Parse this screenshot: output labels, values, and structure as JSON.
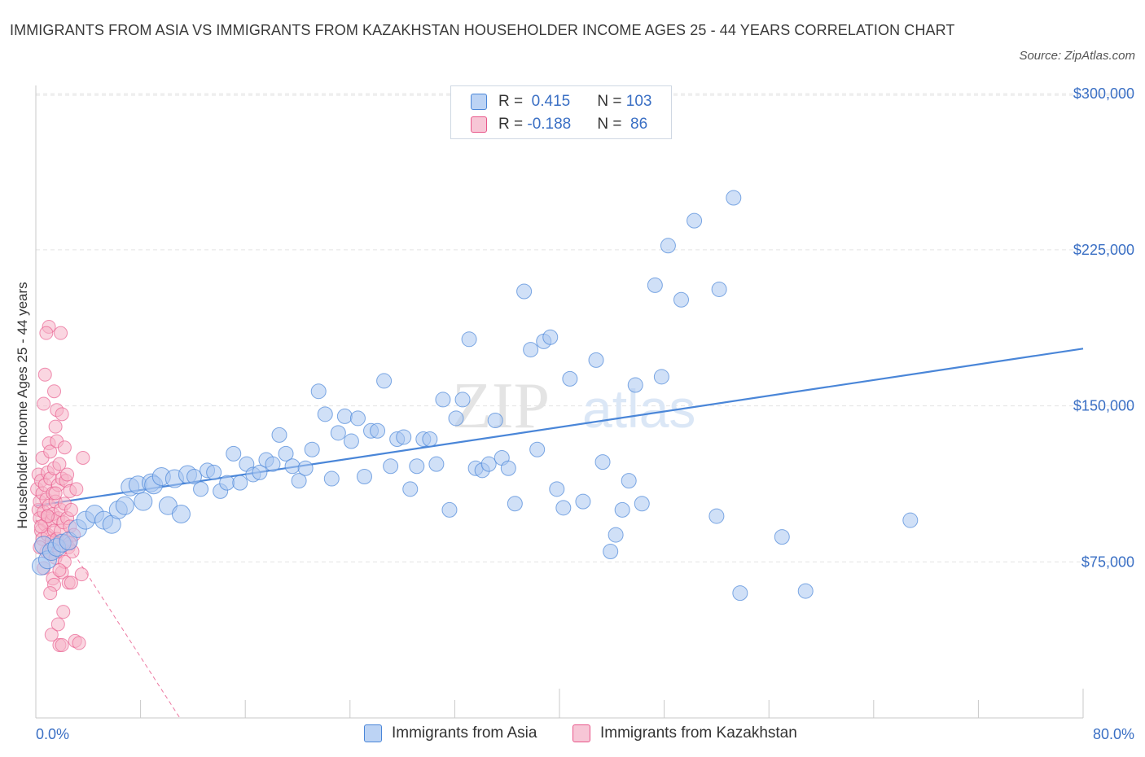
{
  "title": "IMMIGRANTS FROM ASIA VS IMMIGRANTS FROM KAZAKHSTAN HOUSEHOLDER INCOME AGES 25 - 44 YEARS CORRELATION CHART",
  "source": "Source: ZipAtlas.com",
  "watermark": {
    "zip": "ZIP",
    "atlas": "atlas"
  },
  "colors": {
    "asia": "#4a86d8",
    "asia_fill": "#a9c6f0",
    "kaz": "#e8578a",
    "kaz_fill": "#f5b4c9",
    "tick": "#3a6fc4"
  },
  "legend": {
    "rows": [
      {
        "r_label": "R = ",
        "r_value": " 0.415",
        "n_label": "N = ",
        "n_value": "103"
      },
      {
        "r_label": "R = ",
        "r_value": "-0.188",
        "n_label": "N = ",
        "n_value": " 86"
      }
    ]
  },
  "chart_data": {
    "type": "scatter",
    "title": "IMMIGRANTS FROM ASIA VS IMMIGRANTS FROM KAZAKHSTAN HOUSEHOLDER INCOME AGES 25 - 44 YEARS CORRELATION CHART",
    "xlabel": "",
    "ylabel": "Householder Income Ages 25 - 44 years",
    "xlim": [
      0,
      80
    ],
    "ylim": [
      0,
      300000
    ],
    "x_tick_labels": [
      "0.0%",
      "80.0%"
    ],
    "y_ticks": [
      75000,
      150000,
      225000,
      300000
    ],
    "y_tick_labels": [
      "$75,000",
      "$150,000",
      "$225,000",
      "$300,000"
    ],
    "grid": true,
    "legend_position": "top-center",
    "series": [
      {
        "name": "Immigrants from Asia",
        "color": "#4a86d8",
        "trend": {
          "x": [
            0,
            80
          ],
          "y": [
            102000,
            177500
          ]
        },
        "points": [
          [
            0.4,
            73000
          ],
          [
            0.6,
            83000
          ],
          [
            0.9,
            76000
          ],
          [
            1.2,
            80000
          ],
          [
            1.6,
            82000
          ],
          [
            2.0,
            84000
          ],
          [
            2.5,
            85000
          ],
          [
            3.2,
            91000
          ],
          [
            3.8,
            95000
          ],
          [
            4.5,
            98000
          ],
          [
            5.2,
            95000
          ],
          [
            5.8,
            93000
          ],
          [
            6.3,
            100000
          ],
          [
            6.8,
            102000
          ],
          [
            7.2,
            111000
          ],
          [
            7.8,
            112000
          ],
          [
            8.2,
            104000
          ],
          [
            8.8,
            113000
          ],
          [
            9.0,
            112000
          ],
          [
            9.6,
            116000
          ],
          [
            10.1,
            102000
          ],
          [
            10.6,
            115000
          ],
          [
            11.1,
            98000
          ],
          [
            11.6,
            117000
          ],
          [
            12.1,
            116000
          ],
          [
            12.6,
            110000
          ],
          [
            13.1,
            119000
          ],
          [
            13.6,
            118000
          ],
          [
            14.1,
            109000
          ],
          [
            14.6,
            113000
          ],
          [
            15.1,
            127000
          ],
          [
            15.6,
            113000
          ],
          [
            16.1,
            122000
          ],
          [
            16.6,
            117000
          ],
          [
            17.1,
            118000
          ],
          [
            17.6,
            124000
          ],
          [
            18.1,
            122000
          ],
          [
            18.6,
            136000
          ],
          [
            19.1,
            127000
          ],
          [
            19.6,
            121000
          ],
          [
            20.1,
            114000
          ],
          [
            20.6,
            120000
          ],
          [
            21.1,
            129000
          ],
          [
            21.6,
            157000
          ],
          [
            22.1,
            146000
          ],
          [
            22.6,
            115000
          ],
          [
            23.1,
            137000
          ],
          [
            23.6,
            145000
          ],
          [
            24.1,
            133000
          ],
          [
            24.6,
            144000
          ],
          [
            25.1,
            116000
          ],
          [
            25.6,
            138000
          ],
          [
            26.1,
            138000
          ],
          [
            26.6,
            162000
          ],
          [
            27.1,
            121000
          ],
          [
            27.6,
            134000
          ],
          [
            28.1,
            135000
          ],
          [
            28.6,
            110000
          ],
          [
            29.1,
            121000
          ],
          [
            29.6,
            134000
          ],
          [
            30.1,
            134000
          ],
          [
            30.6,
            122000
          ],
          [
            31.1,
            153000
          ],
          [
            31.6,
            100000
          ],
          [
            32.1,
            144000
          ],
          [
            32.6,
            153000
          ],
          [
            33.1,
            182000
          ],
          [
            33.6,
            120000
          ],
          [
            34.1,
            119000
          ],
          [
            34.6,
            122000
          ],
          [
            35.1,
            143000
          ],
          [
            35.6,
            125000
          ],
          [
            36.1,
            120000
          ],
          [
            36.6,
            103000
          ],
          [
            37.3,
            205000
          ],
          [
            37.8,
            177000
          ],
          [
            38.3,
            129000
          ],
          [
            38.8,
            181000
          ],
          [
            39.3,
            183000
          ],
          [
            39.8,
            110000
          ],
          [
            40.3,
            101000
          ],
          [
            40.8,
            163000
          ],
          [
            41.8,
            104000
          ],
          [
            42.8,
            172000
          ],
          [
            43.3,
            123000
          ],
          [
            43.9,
            80000
          ],
          [
            44.3,
            88000
          ],
          [
            44.8,
            100000
          ],
          [
            45.3,
            114000
          ],
          [
            45.8,
            160000
          ],
          [
            46.3,
            103000
          ],
          [
            47.3,
            208000
          ],
          [
            47.8,
            164000
          ],
          [
            48.3,
            227000
          ],
          [
            49.3,
            201000
          ],
          [
            50.3,
            239000
          ],
          [
            52.0,
            97000
          ],
          [
            52.2,
            206000
          ],
          [
            53.3,
            250000
          ],
          [
            53.8,
            60000
          ],
          [
            57.0,
            87000
          ],
          [
            58.8,
            61000
          ],
          [
            66.8,
            95000
          ]
        ]
      },
      {
        "name": "Immigrants from Kazakhstan",
        "color": "#e8578a",
        "trend": {
          "x": [
            0,
            2.6
          ],
          "y": [
            95000,
            82000
          ],
          "dashed_x": [
            2.6,
            11
          ],
          "dashed_y": [
            82000,
            0
          ]
        },
        "points": [
          [
            0.1,
            110000
          ],
          [
            0.2,
            100000
          ],
          [
            0.2,
            117000
          ],
          [
            0.3,
            104000
          ],
          [
            0.3,
            96000
          ],
          [
            0.4,
            114000
          ],
          [
            0.4,
            90000
          ],
          [
            0.5,
            108000
          ],
          [
            0.5,
            86000
          ],
          [
            0.5,
            125000
          ],
          [
            0.6,
            151000
          ],
          [
            0.6,
            99000
          ],
          [
            0.7,
            112000
          ],
          [
            0.7,
            93000
          ],
          [
            0.7,
            165000
          ],
          [
            0.8,
            80000
          ],
          [
            0.8,
            105000
          ],
          [
            0.9,
            118000
          ],
          [
            0.9,
            97000
          ],
          [
            0.9,
            88000
          ],
          [
            1.0,
            188000
          ],
          [
            1.0,
            132000
          ],
          [
            1.0,
            102000
          ],
          [
            1.1,
            128000
          ],
          [
            1.1,
            79000
          ],
          [
            1.1,
            115000
          ],
          [
            1.2,
            95000
          ],
          [
            1.2,
            85000
          ],
          [
            1.2,
            40000
          ],
          [
            1.3,
            108000
          ],
          [
            1.3,
            67000
          ],
          [
            1.3,
            98000
          ],
          [
            1.4,
            157000
          ],
          [
            1.4,
            120000
          ],
          [
            1.4,
            90000
          ],
          [
            1.5,
            140000
          ],
          [
            1.5,
            77000
          ],
          [
            1.5,
            104000
          ],
          [
            1.6,
            148000
          ],
          [
            1.6,
            133000
          ],
          [
            1.6,
            86000
          ],
          [
            1.7,
            112000
          ],
          [
            1.7,
            96000
          ],
          [
            1.7,
            45000
          ],
          [
            1.8,
            35000
          ],
          [
            1.8,
            122000
          ],
          [
            1.8,
            80000
          ],
          [
            1.9,
            100000
          ],
          [
            1.9,
            90000
          ],
          [
            2.0,
            35000
          ],
          [
            2.0,
            146000
          ],
          [
            2.0,
            115000
          ],
          [
            2.0,
            70000
          ],
          [
            2.1,
            51000
          ],
          [
            2.1,
            94000
          ],
          [
            2.2,
            103000
          ],
          [
            2.2,
            75000
          ],
          [
            2.3,
            114000
          ],
          [
            2.3,
            85000
          ],
          [
            2.4,
            117000
          ],
          [
            2.4,
            96000
          ],
          [
            2.5,
            65000
          ],
          [
            2.5,
            82000
          ],
          [
            2.6,
            109000
          ],
          [
            2.6,
            92000
          ],
          [
            2.7,
            65000
          ],
          [
            2.7,
            100000
          ],
          [
            2.8,
            80000
          ],
          [
            3.0,
            37000
          ],
          [
            3.1,
            110000
          ],
          [
            3.3,
            36000
          ],
          [
            3.5,
            69000
          ],
          [
            3.6,
            125000
          ],
          [
            0.8,
            185000
          ],
          [
            1.9,
            185000
          ],
          [
            1.4,
            64000
          ],
          [
            0.6,
            72000
          ],
          [
            2.9,
            88000
          ],
          [
            0.3,
            82000
          ],
          [
            1.1,
            60000
          ],
          [
            2.2,
            130000
          ],
          [
            1.5,
            108000
          ],
          [
            0.9,
            97000
          ],
          [
            1.8,
            71000
          ],
          [
            2.6,
            84000
          ],
          [
            0.4,
            92000
          ]
        ]
      }
    ]
  }
}
